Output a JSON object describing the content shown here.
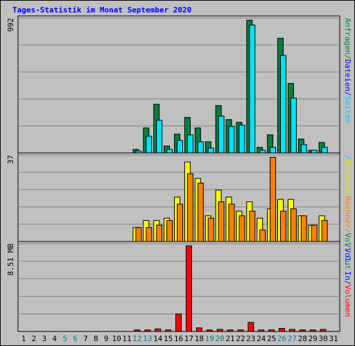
{
  "title": "Tages-Statistik im Monat September 2020",
  "chart_data": [
    {
      "type": "bar",
      "ylim": [
        0,
        992
      ],
      "yticks": [
        992
      ],
      "axis_label": [
        {
          "text": "Anfragen",
          "color": "#008040"
        },
        {
          "text": "/",
          "color": "#008040"
        },
        {
          "text": "Dateien",
          "color": "#0000ff"
        },
        {
          "text": "/",
          "color": "#0000ff"
        },
        {
          "text": "Seiten",
          "color": "#00c8ff"
        }
      ],
      "series": [
        {
          "color": "#008040",
          "values": [
            null,
            null,
            null,
            null,
            null,
            null,
            null,
            null,
            null,
            null,
            null,
            26,
            184,
            358,
            51,
            138,
            261,
            184,
            82,
            348,
            245,
            225,
            976,
            41,
            133,
            843,
            511,
            102,
            20,
            77,
            null
          ]
        },
        {
          "color": "#00e0ff",
          "values": [
            null,
            null,
            null,
            null,
            null,
            null,
            null,
            null,
            null,
            null,
            null,
            15,
            123,
            240,
            26,
            92,
            133,
            82,
            36,
            271,
            194,
            204,
            940,
            20,
            41,
            716,
            404,
            61,
            20,
            41,
            null
          ]
        }
      ]
    },
    {
      "type": "bar",
      "ylim": [
        0,
        37
      ],
      "yticks": [
        37
      ],
      "axis_label": [
        {
          "text": "/",
          "color": "#00c8ff"
        },
        {
          "text": "Besuche",
          "color": "#e0e000"
        },
        {
          "text": "/",
          "color": "#e0e000"
        },
        {
          "text": "Rechner",
          "color": "#ff8000"
        },
        {
          "text": "/",
          "color": "#ff8000"
        },
        {
          "text": "Vol. Out",
          "color": "#008040"
        }
      ],
      "series": [
        {
          "color": "#ffff00",
          "values": [
            null,
            null,
            null,
            null,
            null,
            null,
            null,
            null,
            null,
            null,
            null,
            6,
            9,
            9,
            10,
            19,
            34,
            27,
            11,
            22,
            19,
            13,
            17,
            10,
            14,
            18,
            18,
            11,
            7,
            11,
            null
          ]
        },
        {
          "color": "#ff8000",
          "values": [
            null,
            null,
            null,
            null,
            null,
            null,
            null,
            null,
            null,
            null,
            null,
            6,
            6,
            7,
            9,
            16,
            29,
            25,
            10,
            17,
            16,
            11,
            13,
            5,
            36,
            13,
            14,
            11,
            7,
            9,
            null
          ]
        }
      ]
    },
    {
      "type": "bar",
      "ylim": [
        0,
        8.51
      ],
      "yticks": [
        {
          "value": 8.51,
          "label": "8.51 MB"
        }
      ],
      "axis_label": [
        {
          "text": "/",
          "color": "#008040"
        },
        {
          "text": "Vol. In",
          "color": "#0000ff"
        },
        {
          "text": "/",
          "color": "#0000ff"
        },
        {
          "text": "Volumen",
          "color": "#ff0000"
        }
      ],
      "categories": [
        "1",
        "2",
        "3",
        "4",
        "5",
        "6",
        "7",
        "8",
        "9",
        "10",
        "11",
        "12",
        "13",
        "14",
        "15",
        "16",
        "17",
        "18",
        "19",
        "20",
        "21",
        "22",
        "23",
        "24",
        "25",
        "26",
        "27",
        "28",
        "29",
        "30",
        "31"
      ],
      "category_colors": [
        "#000000",
        "#000000",
        "#000000",
        "#000000",
        "#008080",
        "#008080",
        "#000000",
        "#000000",
        "#000000",
        "#000000",
        "#000000",
        "#008080",
        "#008080",
        "#000000",
        "#000000",
        "#000000",
        "#000000",
        "#000000",
        "#008080",
        "#008080",
        "#000000",
        "#000000",
        "#000000",
        "#000000",
        "#000000",
        "#008080",
        "#008080",
        "#000000",
        "#000000",
        "#000000",
        "#000000"
      ],
      "series": [
        {
          "color": "#ff0000",
          "values": [
            null,
            null,
            null,
            null,
            null,
            null,
            null,
            null,
            null,
            null,
            null,
            0.15,
            0.15,
            0.25,
            0.15,
            1.7,
            8.3,
            0.35,
            0.15,
            0.2,
            0.15,
            0.15,
            0.88,
            0.15,
            0.15,
            0.3,
            0.2,
            0.15,
            0.15,
            0.2,
            null
          ]
        }
      ]
    }
  ]
}
